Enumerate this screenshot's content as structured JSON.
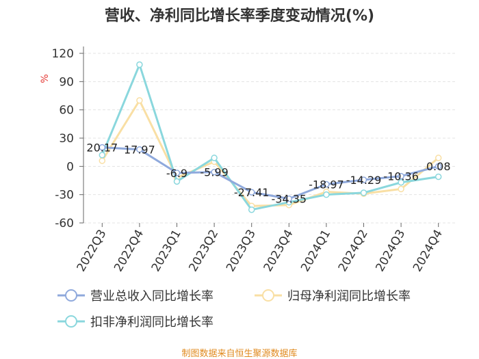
{
  "chart_data": {
    "type": "line",
    "title": "营收、净利同比增长率季度变动情况(%)",
    "ylabel": "%",
    "ylim": [
      -60,
      120
    ],
    "yticks": [
      -60,
      -30,
      0,
      30,
      60,
      90,
      120
    ],
    "categories": [
      "2022Q3",
      "2022Q4",
      "2023Q1",
      "2023Q2",
      "2023Q3",
      "2023Q4",
      "2024Q1",
      "2024Q2",
      "2024Q3",
      "2024Q4"
    ],
    "series": [
      {
        "name": "营业总收入同比增长率",
        "color": "#8fa9dc",
        "values": [
          20.17,
          17.97,
          -6.9,
          -5.99,
          -27.41,
          -34.35,
          -18.97,
          -14.29,
          -10.36,
          0.08
        ],
        "labels": [
          "20.17",
          "17.97",
          "-6.9",
          "-5.99",
          "-27.41",
          "-34.35",
          "-18.97",
          "-14.29",
          "-10.36",
          "0.08"
        ]
      },
      {
        "name": "归母净利润同比增长率",
        "color": "#f9dfa4",
        "values": [
          6,
          70,
          -12,
          5,
          -42,
          -41,
          -27,
          -29,
          -24,
          9
        ]
      },
      {
        "name": "扣非净利润同比增长率",
        "color": "#8ad7dd",
        "values": [
          12,
          108,
          -16,
          9,
          -46,
          -38,
          -30,
          -28,
          -17,
          -11
        ]
      }
    ],
    "legend_position": "bottom",
    "grid": "horizontal-dashed",
    "source": "制图数据来自恒生聚源数据库"
  }
}
